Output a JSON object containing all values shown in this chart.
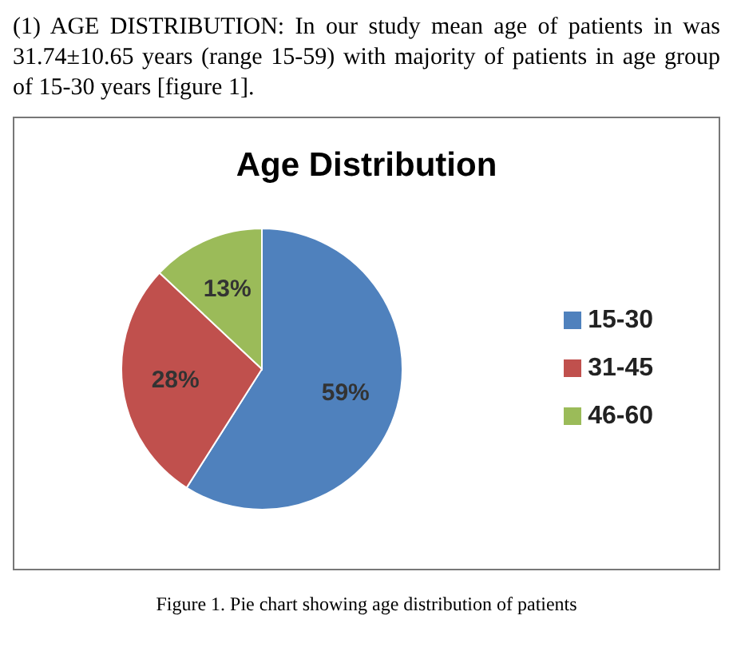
{
  "chart_data": {
    "type": "pie",
    "title": "Age Distribution",
    "categories": [
      "15-30",
      "31-45",
      "46-60"
    ],
    "values": [
      59,
      28,
      13
    ],
    "colors": [
      "#4f81bd",
      "#c0504d",
      "#9bbb59"
    ],
    "value_labels": [
      "59%",
      "28%",
      "13%"
    ],
    "legend": "right",
    "annotations": [
      "(1) AGE DISTRIBUTION: In our study mean age of patients in was 31.74±10.65 years (range 15-59) with majority of patients in age group of 15-30 years [figure 1].",
      "Figure 1.  Pie chart showing age distribution of patients"
    ]
  }
}
